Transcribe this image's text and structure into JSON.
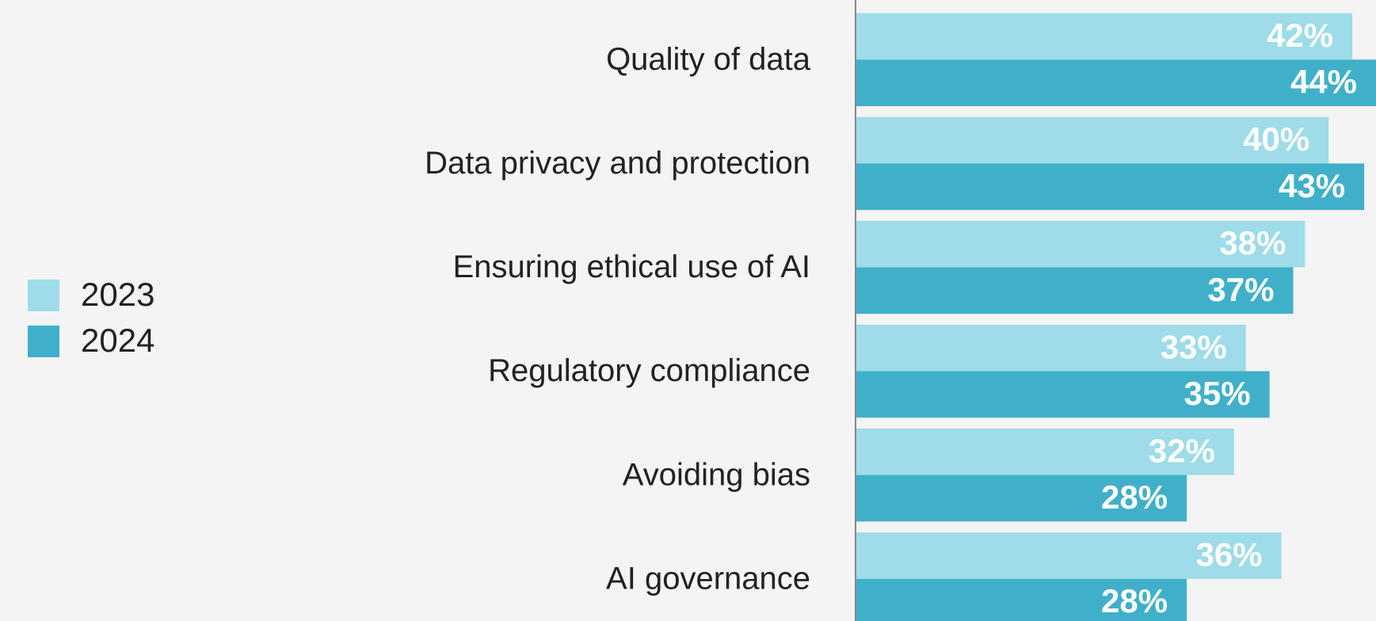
{
  "chart_data": {
    "type": "barh",
    "categories": [
      "Quality of data",
      "Data privacy and protection",
      "Ensuring ethical use of AI",
      "Regulatory compliance",
      "Avoiding bias",
      "AI governance"
    ],
    "series": [
      {
        "name": "2023",
        "color": "#9ddce8",
        "values": [
          42,
          40,
          38,
          33,
          32,
          36
        ],
        "value_labels": [
          "42%",
          "40%",
          "38%",
          "33%",
          "32%",
          "36%"
        ]
      },
      {
        "name": "2024",
        "color": "#40b0ca",
        "values": [
          44,
          43,
          37,
          35,
          28,
          28
        ],
        "value_labels": [
          "44%",
          "43%",
          "37%",
          "35%",
          "28%",
          "28%"
        ]
      }
    ],
    "xlim": [
      0,
      44
    ],
    "legend": "left"
  }
}
